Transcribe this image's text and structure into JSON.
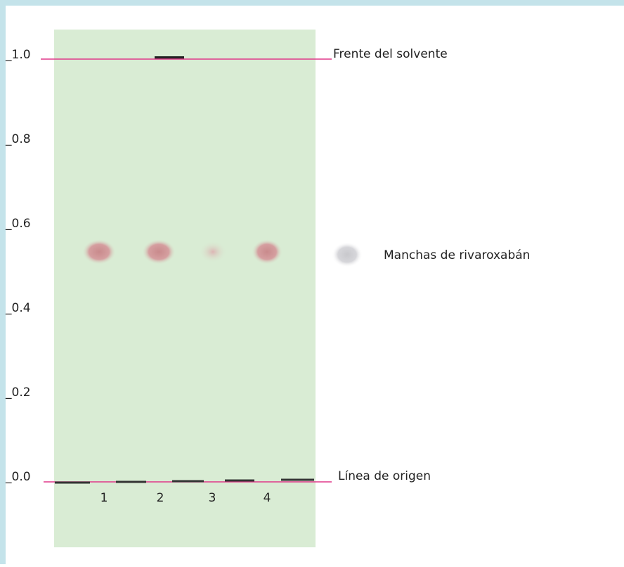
{
  "scale_labels": [
    "_1.0",
    "_0.8",
    "_0.6",
    "_0.4",
    "_0.2",
    "_0.0"
  ],
  "annotations": {
    "solvent_front": "Frente del solvente",
    "spots": "Manchas de rivaroxabán",
    "origin": "Línea de origen"
  },
  "lanes": [
    "1",
    "2",
    "3",
    "4"
  ]
}
